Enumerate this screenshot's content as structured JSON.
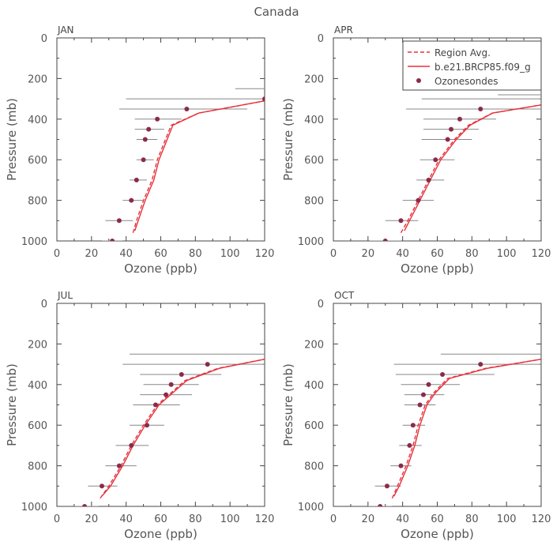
{
  "title": "Canada",
  "legend": {
    "placement": "top-right of APR panel",
    "items": [
      {
        "label": "Region Avg.",
        "style": "dashed-line",
        "color": "#e8303a"
      },
      {
        "label": "b.e21.BRCP85.f09_g",
        "style": "solid-line",
        "color": "#e8303a"
      },
      {
        "label": "Ozonesondes",
        "style": "marker",
        "color": "#8b2a4a"
      }
    ]
  },
  "colors": {
    "model": "#e8303a",
    "obs": "#8b2a4a",
    "bar": "#888888",
    "axis": "#444444"
  },
  "chart_data": [
    {
      "type": "line",
      "panel": "JAN",
      "xlabel": "Ozone (ppb)",
      "ylabel": "Pressure (mb)",
      "xlim": [
        0,
        120
      ],
      "ylim": [
        1000,
        0
      ],
      "y_inverted": true,
      "xticks": [
        "0",
        "20",
        "40",
        "60",
        "80",
        "100",
        "120"
      ],
      "yticks": [
        "0",
        "200",
        "400",
        "600",
        "800",
        "1000"
      ],
      "series": [
        {
          "name": "Region Avg.",
          "style": "dashed",
          "x": [
            44,
            46,
            50,
            55,
            58,
            66,
            82,
            120
          ],
          "y": [
            960,
            900,
            800,
            700,
            600,
            430,
            370,
            310
          ]
        },
        {
          "name": "b.e21.BRCP85.f09_g",
          "style": "solid",
          "x": [
            45,
            47,
            51,
            56,
            59,
            67,
            82,
            120
          ],
          "y": [
            950,
            900,
            800,
            700,
            600,
            430,
            370,
            310
          ]
        },
        {
          "name": "Ozonesondes",
          "style": "marker",
          "x": [
            32,
            36,
            43,
            46,
            50,
            51,
            53,
            58,
            75,
            120
          ],
          "y": [
            1000,
            900,
            800,
            700,
            600,
            500,
            450,
            400,
            350,
            300
          ],
          "err_low": [
            26,
            28,
            38,
            42,
            46,
            46,
            45,
            45,
            36,
            40
          ],
          "err_high": [
            38,
            44,
            50,
            52,
            56,
            58,
            62,
            72,
            110,
            200
          ]
        },
        {
          "name": "",
          "style": "bar-only",
          "y": [
            250
          ],
          "err_low": [
            103
          ],
          "err_high": [
            150
          ]
        }
      ]
    },
    {
      "type": "line",
      "panel": "APR",
      "xlabel": "Ozone (ppb)",
      "ylabel": "Pressure (mb)",
      "xlim": [
        0,
        120
      ],
      "ylim": [
        1000,
        0
      ],
      "y_inverted": true,
      "xticks": [
        "0",
        "20",
        "40",
        "60",
        "80",
        "100",
        "120"
      ],
      "yticks": [
        "0",
        "200",
        "400",
        "600",
        "800",
        "1000"
      ],
      "series": [
        {
          "name": "Region Avg.",
          "style": "dashed",
          "x": [
            39,
            43,
            49,
            55,
            61,
            70,
            78,
            92,
            120
          ],
          "y": [
            960,
            900,
            800,
            700,
            600,
            500,
            430,
            370,
            330
          ]
        },
        {
          "name": "b.e21.BRCP85.f09_g",
          "style": "solid",
          "x": [
            41,
            44,
            50,
            56,
            62,
            71,
            79,
            92,
            120
          ],
          "y": [
            950,
            900,
            800,
            700,
            600,
            500,
            430,
            370,
            330
          ]
        },
        {
          "name": "Ozonesondes",
          "style": "marker",
          "x": [
            30,
            39,
            49,
            55,
            59,
            66,
            68,
            73,
            85
          ],
          "y": [
            1000,
            900,
            800,
            700,
            600,
            500,
            450,
            400,
            350
          ],
          "err_low": [
            21,
            30,
            40,
            48,
            50,
            51,
            52,
            52,
            42
          ],
          "err_high": [
            39,
            49,
            58,
            64,
            70,
            80,
            84,
            94,
            120
          ]
        },
        {
          "name": "",
          "style": "bar-only",
          "y": [
            250,
            280,
            300
          ],
          "err_low": [
            88,
            95,
            51
          ],
          "err_high": [
            150,
            150,
            160
          ]
        }
      ]
    },
    {
      "type": "line",
      "panel": "JUL",
      "xlabel": "Ozone (ppb)",
      "ylabel": "Pressure (mb)",
      "xlim": [
        0,
        120
      ],
      "ylim": [
        1000,
        0
      ],
      "y_inverted": true,
      "xticks": [
        "0",
        "20",
        "40",
        "60",
        "80",
        "100",
        "120"
      ],
      "yticks": [
        "0",
        "200",
        "400",
        "600",
        "800",
        "1000"
      ],
      "series": [
        {
          "name": "Region Avg.",
          "style": "dashed",
          "x": [
            25,
            30,
            37,
            43,
            50,
            58,
            66,
            74,
            93,
            120
          ],
          "y": [
            960,
            900,
            800,
            700,
            600,
            500,
            440,
            380,
            320,
            275
          ]
        },
        {
          "name": "b.e21.BRCP85.f09_g",
          "style": "solid",
          "x": [
            26,
            31,
            38,
            44,
            51,
            59,
            67,
            75,
            94,
            120
          ],
          "y": [
            950,
            900,
            800,
            700,
            600,
            500,
            440,
            380,
            320,
            275
          ]
        },
        {
          "name": "Ozonesondes",
          "style": "marker",
          "x": [
            16,
            26,
            36,
            43,
            52,
            57,
            63,
            66,
            72,
            87
          ],
          "y": [
            1000,
            900,
            800,
            700,
            600,
            500,
            450,
            400,
            350,
            300
          ],
          "err_low": [
            10,
            18,
            28,
            34,
            42,
            44,
            48,
            50,
            48,
            38
          ],
          "err_high": [
            24,
            35,
            46,
            53,
            62,
            71,
            78,
            82,
            95,
            150
          ]
        },
        {
          "name": "",
          "style": "bar-only",
          "y": [
            250
          ],
          "err_low": [
            42
          ],
          "err_high": [
            150
          ]
        }
      ]
    },
    {
      "type": "line",
      "panel": "OCT",
      "xlabel": "Ozone (ppb)",
      "ylabel": "Pressure (mb)",
      "xlim": [
        0,
        120
      ],
      "ylim": [
        1000,
        0
      ],
      "y_inverted": true,
      "xticks": [
        "0",
        "20",
        "40",
        "60",
        "80",
        "100",
        "120"
      ],
      "yticks": [
        "0",
        "200",
        "400",
        "600",
        "800",
        "1000"
      ],
      "series": [
        {
          "name": "Region Avg.",
          "style": "dashed",
          "x": [
            34,
            37,
            42,
            46,
            49,
            53,
            58,
            66,
            88,
            120
          ],
          "y": [
            960,
            900,
            800,
            700,
            600,
            500,
            440,
            370,
            320,
            275
          ]
        },
        {
          "name": "b.e21.BRCP85.f09_g",
          "style": "solid",
          "x": [
            35,
            38,
            43,
            47,
            50,
            54,
            59,
            67,
            89,
            120
          ],
          "y": [
            950,
            900,
            800,
            700,
            600,
            500,
            440,
            370,
            320,
            275
          ]
        },
        {
          "name": "Ozonesondes",
          "style": "marker",
          "x": [
            27,
            31,
            39,
            44,
            46,
            50,
            52,
            55,
            63,
            85
          ],
          "y": [
            1000,
            900,
            800,
            700,
            600,
            500,
            450,
            400,
            350,
            300
          ],
          "err_low": [
            20,
            24,
            33,
            38,
            40,
            41,
            41,
            39,
            36,
            35
          ],
          "err_high": [
            34,
            39,
            45,
            51,
            53,
            59,
            64,
            73,
            93,
            150
          ]
        },
        {
          "name": "",
          "style": "bar-only",
          "y": [
            250
          ],
          "err_low": [
            62
          ],
          "err_high": [
            150
          ]
        }
      ]
    }
  ]
}
